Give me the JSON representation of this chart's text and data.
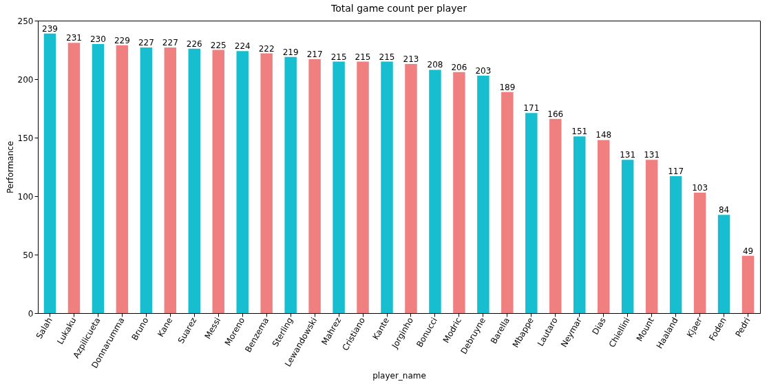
{
  "chart_data": {
    "type": "bar",
    "title": "Total game count per player",
    "xlabel": "player_name",
    "ylabel": "Performance",
    "categories": [
      "Salah",
      "Lukaku",
      "Azpilicueta",
      "Donnarumma",
      "Bruno",
      "Kane",
      "Suarez",
      "Messi",
      "Moreno",
      "Benzema",
      "Sterling",
      "Lewandowski",
      "Mahrez",
      "Cristiano",
      "Kante",
      "Jorginho",
      "Bonucci",
      "Modric",
      "Debruyne",
      "Barella",
      "Mbappe",
      "Lautaro",
      "Neymar",
      "Dias",
      "Chiellini",
      "Mount",
      "Haaland",
      "Kjaer",
      "Foden",
      "Pedri"
    ],
    "values": [
      239,
      231,
      230,
      229,
      227,
      227,
      226,
      225,
      224,
      222,
      219,
      217,
      215,
      215,
      215,
      213,
      208,
      206,
      203,
      189,
      171,
      166,
      151,
      148,
      131,
      131,
      117,
      103,
      84,
      49
    ],
    "colors": [
      "#17becf",
      "#f08080",
      "#17becf",
      "#f08080",
      "#17becf",
      "#f08080",
      "#17becf",
      "#f08080",
      "#17becf",
      "#f08080",
      "#17becf",
      "#f08080",
      "#17becf",
      "#f08080",
      "#17becf",
      "#f08080",
      "#17becf",
      "#f08080",
      "#17becf",
      "#f08080",
      "#17becf",
      "#f08080",
      "#17becf",
      "#f08080",
      "#17becf",
      "#f08080",
      "#17becf",
      "#f08080",
      "#17becf",
      "#f08080"
    ],
    "ylim": [
      0,
      250
    ],
    "yticks": [
      0,
      50,
      100,
      150,
      200,
      250
    ],
    "data_labels": true,
    "grid": false
  }
}
